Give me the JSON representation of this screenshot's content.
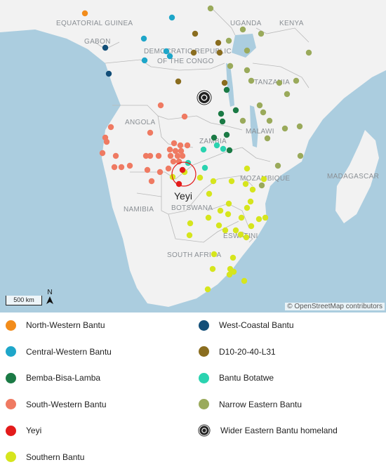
{
  "map": {
    "country_labels": [
      {
        "id": "equatorial-guinea",
        "text": "EQUATORIAL GUINEA"
      },
      {
        "id": "gabon",
        "text": "GABON"
      },
      {
        "id": "drc-1",
        "text": "DEMOCRATIC REPUBLIC"
      },
      {
        "id": "drc-2",
        "text": "OF THE CONGO"
      },
      {
        "id": "uganda",
        "text": "UGANDA"
      },
      {
        "id": "kenya",
        "text": "KENYA"
      },
      {
        "id": "tanzania",
        "text": "TANZANIA"
      },
      {
        "id": "angola",
        "text": "ANGOLA"
      },
      {
        "id": "zambia",
        "text": "ZAMBIA"
      },
      {
        "id": "malawi",
        "text": "MALAWI"
      },
      {
        "id": "mozambique",
        "text": "MOZAMBIQUE"
      },
      {
        "id": "madagascar",
        "text": "MADAGASCAR"
      },
      {
        "id": "namibia",
        "text": "NAMIBIA"
      },
      {
        "id": "botswana",
        "text": "BOTSWANA"
      },
      {
        "id": "eswatini",
        "text": "ESWATINI"
      },
      {
        "id": "south-africa",
        "text": "SOUTH AFRICA"
      }
    ],
    "highlight_label": "Yeyi",
    "scale_label": "500 km",
    "north_label": "N",
    "attribution": "© OpenStreetMap contributors"
  },
  "colors": {
    "water": "#abcddf",
    "land": "#f2f2f2",
    "north_western": "#f28c1b",
    "central_western": "#1ea6c9",
    "bemba_bisa_lamba": "#1b7a45",
    "south_western": "#ef7a62",
    "yeyi": "#e31b1b",
    "southern": "#d6e51d",
    "west_coastal": "#124e78",
    "d10": "#8a6d1f",
    "bantu_botatwe": "#2ad3b0",
    "narrow_eastern": "#9aaa5b",
    "homeland": "#222222"
  },
  "legend": {
    "items": [
      {
        "key": "north_western",
        "label": "North-Western Bantu",
        "icon": "dot"
      },
      {
        "key": "central_western",
        "label": "Central-Western Bantu",
        "icon": "dot"
      },
      {
        "key": "bemba_bisa_lamba",
        "label": "Bemba-Bisa-Lamba",
        "icon": "dot"
      },
      {
        "key": "south_western",
        "label": "South-Western Bantu",
        "icon": "dot"
      },
      {
        "key": "yeyi",
        "label": "Yeyi",
        "icon": "dot"
      },
      {
        "key": "southern",
        "label": "Southern Bantu",
        "icon": "dot"
      },
      {
        "key": "west_coastal",
        "label": "West-Coastal Bantu",
        "icon": "dot"
      },
      {
        "key": "d10",
        "label": "D10-20-40-L31",
        "icon": "dot"
      },
      {
        "key": "bantu_botatwe",
        "label": "Bantu Botatwe",
        "icon": "dot"
      },
      {
        "key": "narrow_eastern",
        "label": "Narrow Eastern Bantu",
        "icon": "dot"
      },
      {
        "key": "homeland",
        "label": "Wider Eastern Bantu homeland",
        "icon": "target-icon"
      }
    ]
  }
}
